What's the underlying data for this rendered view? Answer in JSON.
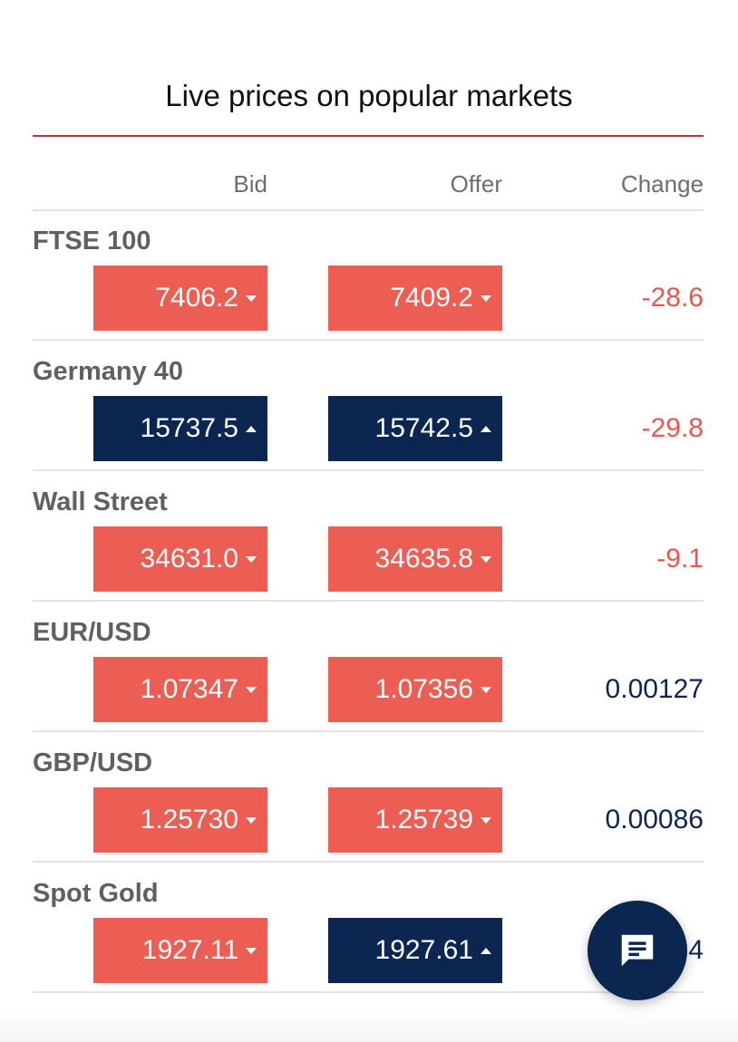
{
  "title": "Live prices on popular markets",
  "columns": {
    "bid": "Bid",
    "offer": "Offer",
    "change": "Change"
  },
  "markets": [
    {
      "name": "FTSE 100",
      "bid": "7406.2",
      "bid_direction": "down",
      "offer": "7409.2",
      "offer_direction": "down",
      "change": "-28.6",
      "change_sign": "negative"
    },
    {
      "name": "Germany 40",
      "bid": "15737.5",
      "bid_direction": "up",
      "offer": "15742.5",
      "offer_direction": "up",
      "change": "-29.8",
      "change_sign": "negative"
    },
    {
      "name": "Wall Street",
      "bid": "34631.0",
      "bid_direction": "down",
      "offer": "34635.8",
      "offer_direction": "down",
      "change": "-9.1",
      "change_sign": "negative"
    },
    {
      "name": "EUR/USD",
      "bid": "1.07347",
      "bid_direction": "down",
      "offer": "1.07356",
      "offer_direction": "down",
      "change": "0.00127",
      "change_sign": "positive"
    },
    {
      "name": "GBP/USD",
      "bid": "1.25730",
      "bid_direction": "down",
      "offer": "1.25739",
      "offer_direction": "down",
      "change": "0.00086",
      "change_sign": "positive"
    },
    {
      "name": "Spot Gold",
      "bid": "1927.11",
      "bid_direction": "down",
      "offer": "1927.61",
      "offer_direction": "up",
      "change": "4",
      "change_sign": "positive"
    }
  ],
  "chat_button": {
    "icon": "chat-icon"
  },
  "colors": {
    "down": "#ec5e53",
    "up": "#0b2650",
    "negative_change": "#e9564b",
    "positive_change": "#0b2650",
    "title_rule": "#b23a3a"
  }
}
